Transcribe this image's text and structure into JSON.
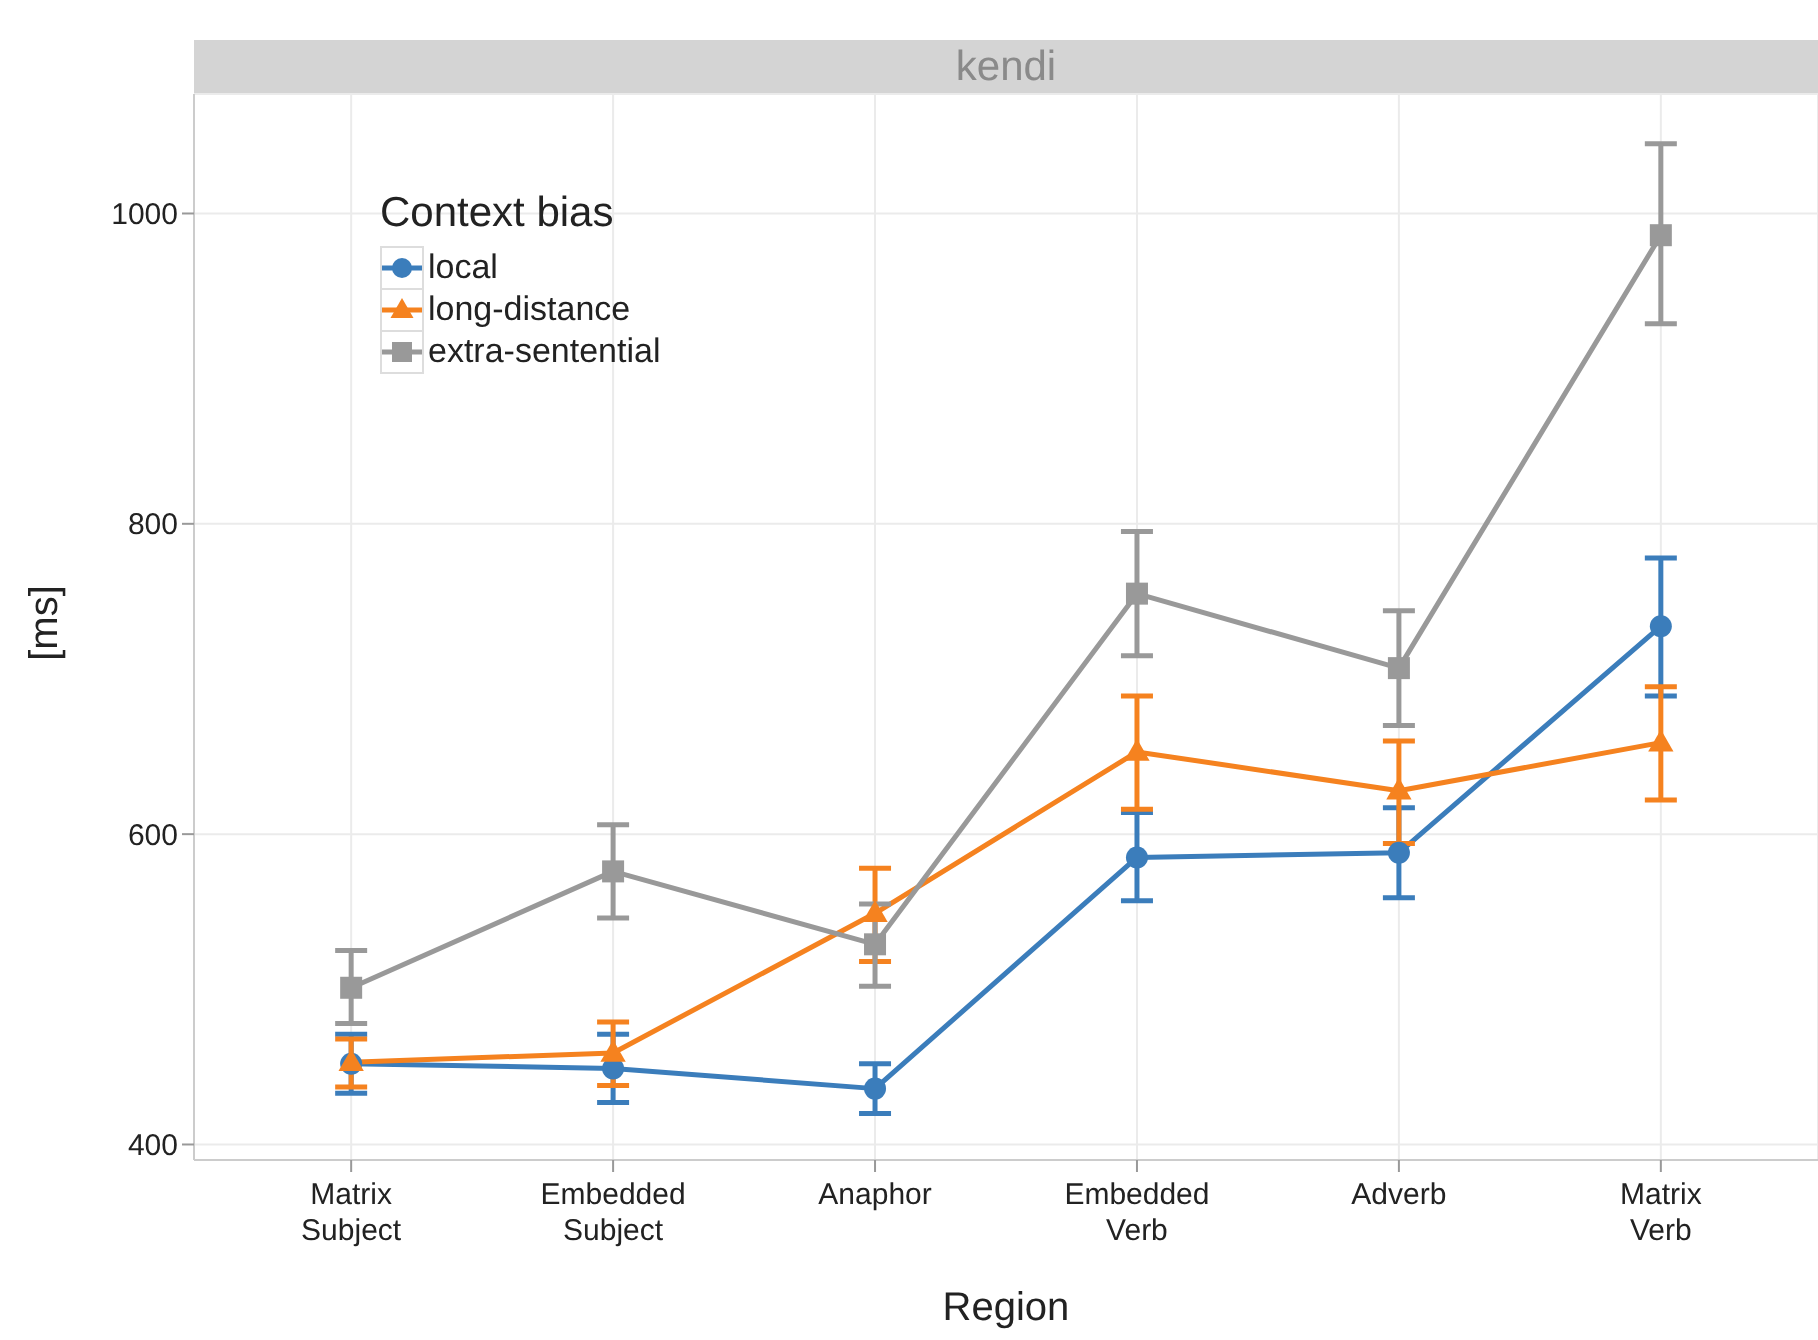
{
  "chart_data": {
    "type": "line",
    "title": "kendi",
    "xlabel": "Region",
    "ylabel": "[ms]",
    "legend_title": "Context bias",
    "legend": "top left",
    "grid": true,
    "categories": [
      "Matrix Subject",
      "Embedded Subject",
      "Anaphor",
      "Embedded Verb",
      "Adverb",
      "Matrix Verb"
    ],
    "ylim": [
      390,
      1077
    ],
    "yticks": [
      400,
      600,
      800,
      1000
    ],
    "series": [
      {
        "name": "local",
        "color": "#3b7dbb",
        "marker": "circle",
        "values": [
          452,
          449,
          436,
          585,
          588,
          734
        ],
        "errors": [
          [
            433,
            471
          ],
          [
            427,
            471
          ],
          [
            420,
            452
          ],
          [
            557,
            614
          ],
          [
            559,
            617
          ],
          [
            689,
            778
          ]
        ]
      },
      {
        "name": "long-distance",
        "color": "#f5821f",
        "marker": "triangle",
        "values": [
          453,
          459,
          549,
          653,
          628,
          659
        ],
        "errors": [
          [
            437,
            468
          ],
          [
            438,
            479
          ],
          [
            518,
            578
          ],
          [
            616,
            689
          ],
          [
            594,
            660
          ],
          [
            622,
            695
          ]
        ]
      },
      {
        "name": "extra-sentential",
        "color": "#999999",
        "marker": "square",
        "values": [
          501,
          576,
          529,
          755,
          707,
          986
        ],
        "errors": [
          [
            478,
            525
          ],
          [
            546,
            606
          ],
          [
            502,
            555
          ],
          [
            715,
            795
          ],
          [
            670,
            744
          ],
          [
            929,
            1045
          ]
        ]
      }
    ]
  }
}
